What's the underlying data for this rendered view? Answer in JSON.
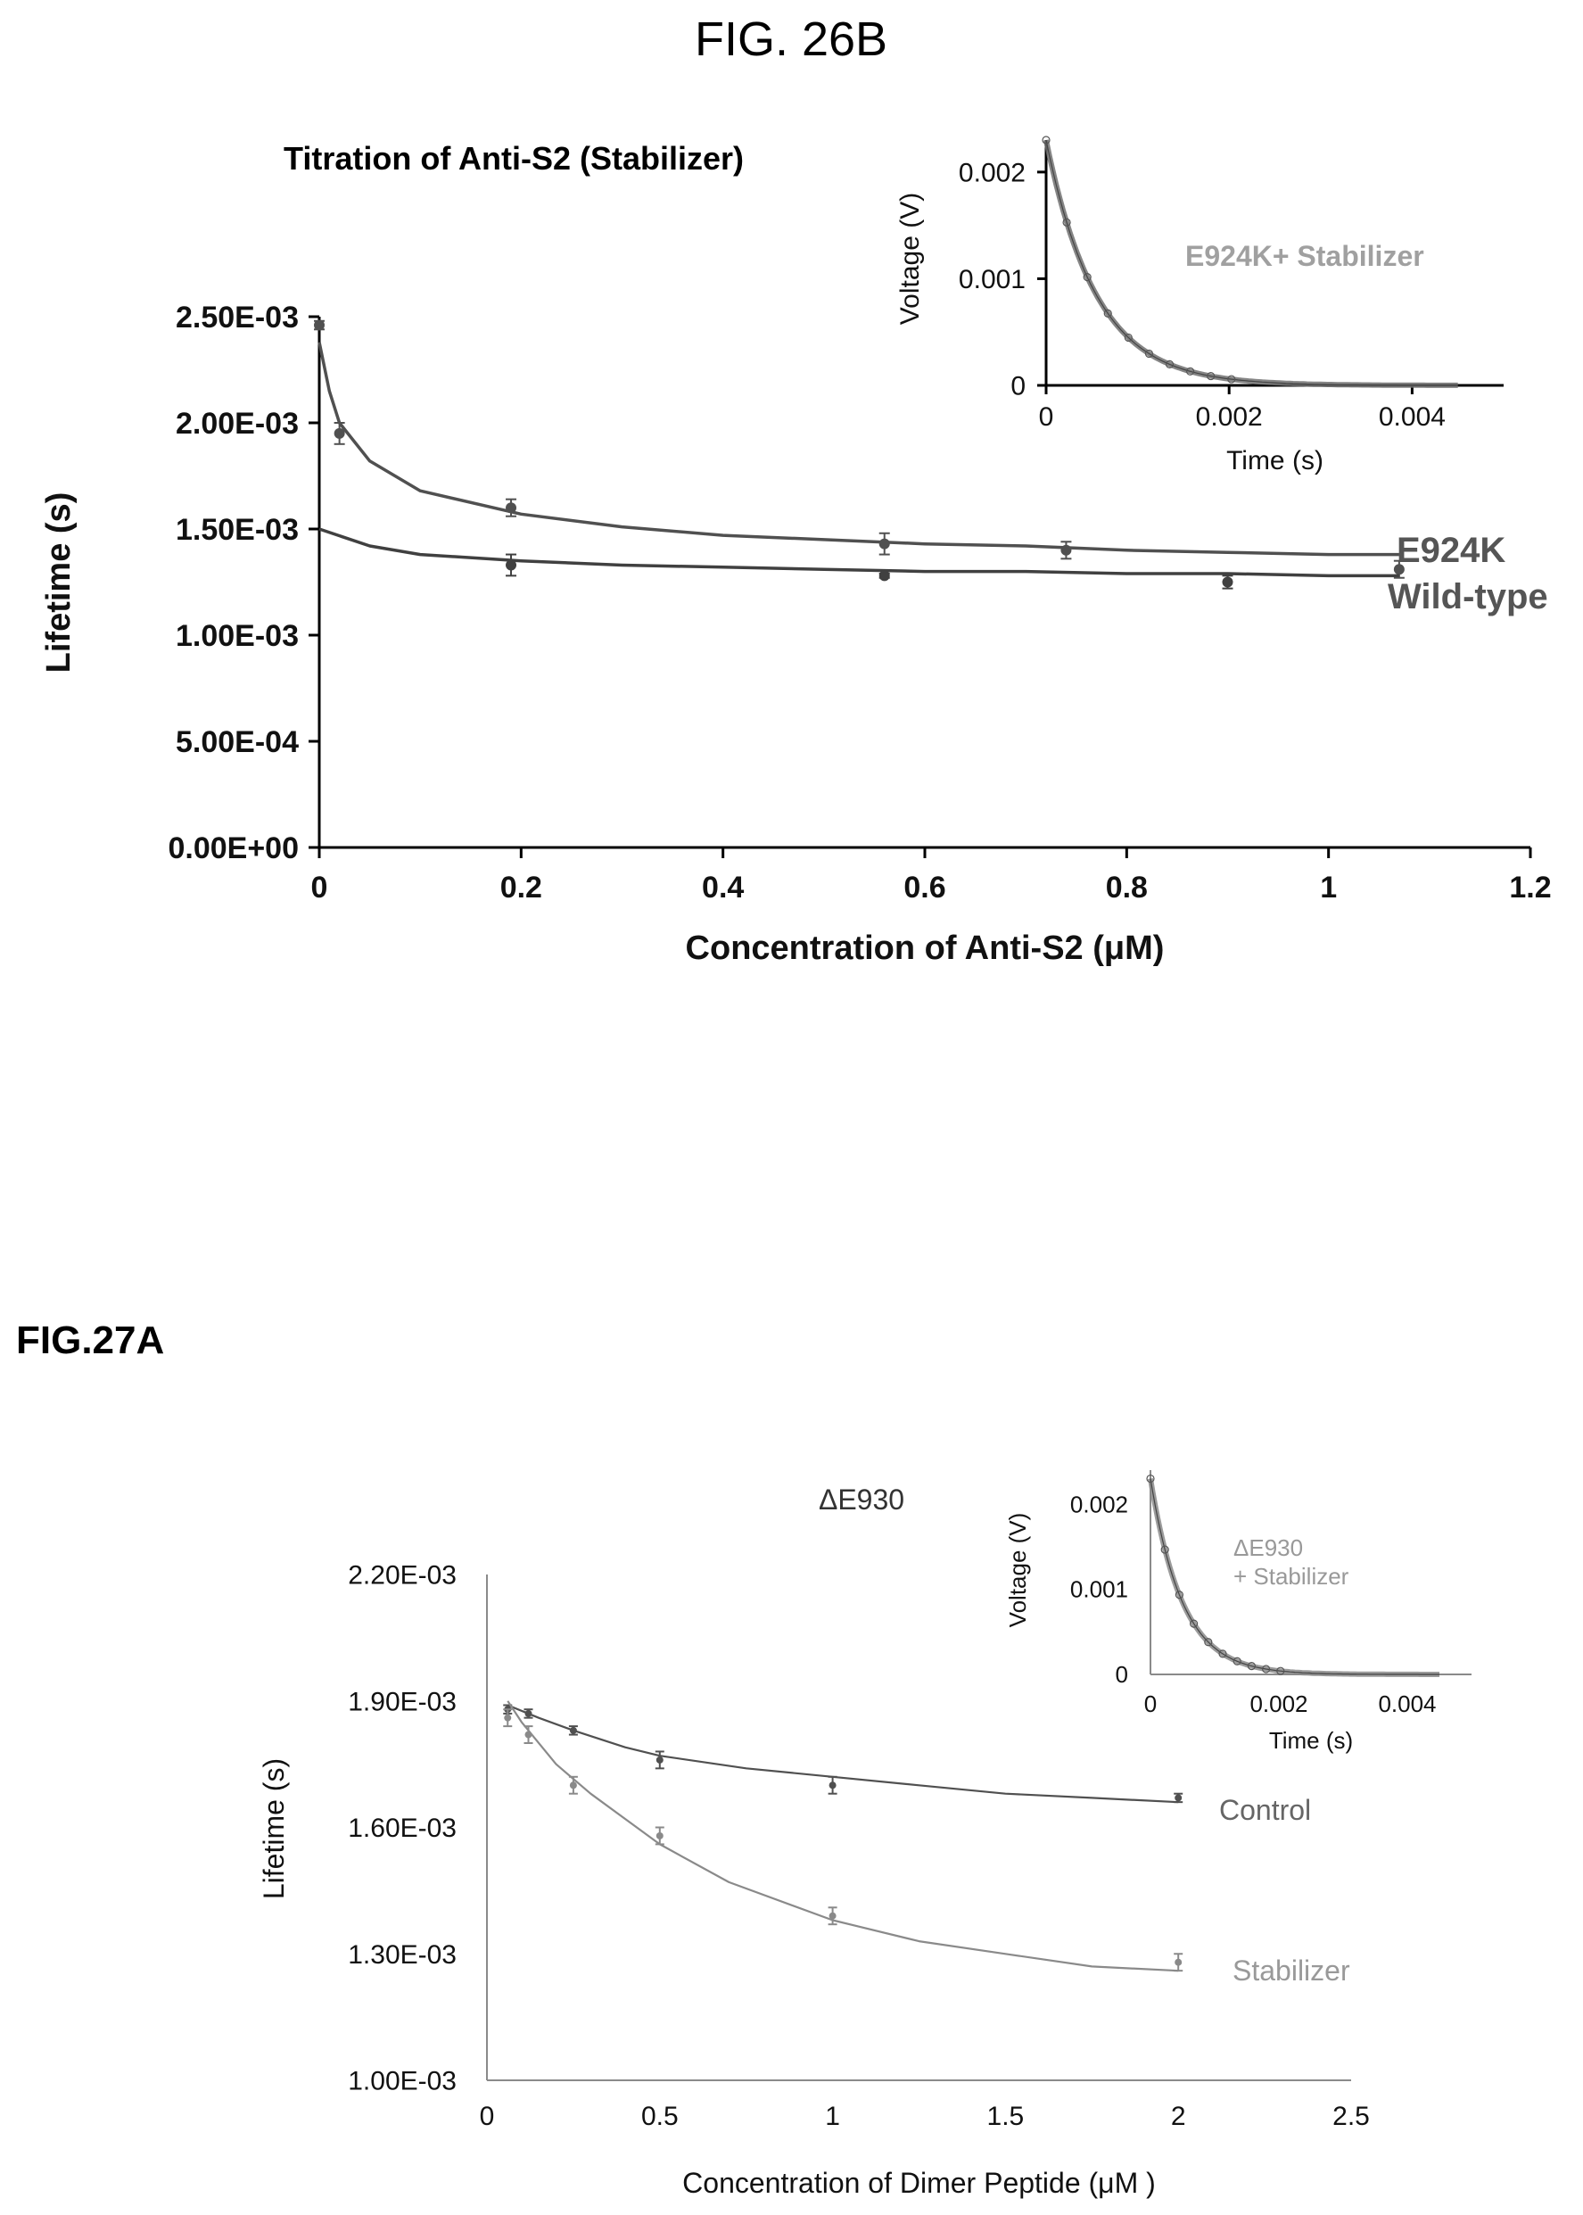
{
  "figures": {
    "fig26b_label": "FIG. 26B",
    "fig27a_label": "FIG.27A"
  },
  "chart_data": [
    {
      "id": "fig26b-main",
      "type": "line",
      "title": "Titration of Anti-S2 (Stabilizer)",
      "xlabel": "Concentration of Anti-S2 (μM)",
      "ylabel": "Lifetime (s)",
      "xlim": [
        0,
        1.2
      ],
      "ylim": [
        0,
        0.0025
      ],
      "xticks": [
        0,
        0.2,
        0.4,
        0.6,
        0.8,
        1,
        1.2
      ],
      "xtick_labels": [
        "0",
        "0.2",
        "0.4",
        "0.6",
        "0.8",
        "1",
        "1.2"
      ],
      "yticks": [
        0,
        0.0005,
        0.001,
        0.0015,
        0.002,
        0.0025
      ],
      "ytick_labels": [
        "0.00E+00",
        "5.00E-04",
        "1.00E-03",
        "1.50E-03",
        "2.00E-03",
        "2.50E-03"
      ],
      "grid": false,
      "series": [
        {
          "name": "E924K",
          "color": "#505050",
          "points": [
            {
              "x": 0,
              "y": 0.00246,
              "err": 2e-05
            },
            {
              "x": 0.02,
              "y": 0.00195,
              "err": 5e-05
            },
            {
              "x": 0.19,
              "y": 0.0016,
              "err": 4e-05
            },
            {
              "x": 0.56,
              "y": 0.00143,
              "err": 5e-05
            },
            {
              "x": 0.74,
              "y": 0.0014,
              "err": 4e-05
            },
            {
              "x": 1.07,
              "y": 0.00131,
              "err": 4e-05
            }
          ],
          "fit": [
            [
              0,
              0.00238
            ],
            [
              0.01,
              0.00215
            ],
            [
              0.02,
              0.002
            ],
            [
              0.05,
              0.00182
            ],
            [
              0.1,
              0.00168
            ],
            [
              0.2,
              0.00157
            ],
            [
              0.3,
              0.00151
            ],
            [
              0.4,
              0.00147
            ],
            [
              0.5,
              0.00145
            ],
            [
              0.6,
              0.00143
            ],
            [
              0.7,
              0.00142
            ],
            [
              0.8,
              0.0014
            ],
            [
              0.9,
              0.00139
            ],
            [
              1.0,
              0.00138
            ],
            [
              1.07,
              0.00138
            ]
          ]
        },
        {
          "name": "Wild-type",
          "color": "#404040",
          "points": [
            {
              "x": 0.19,
              "y": 0.00133,
              "err": 5e-05
            },
            {
              "x": 0.56,
              "y": 0.00128,
              "err": 1e-05
            },
            {
              "x": 0.9,
              "y": 0.00125,
              "err": 3e-05
            }
          ],
          "fit": [
            [
              0,
              0.0015
            ],
            [
              0.05,
              0.00142
            ],
            [
              0.1,
              0.00138
            ],
            [
              0.2,
              0.00135
            ],
            [
              0.3,
              0.00133
            ],
            [
              0.4,
              0.00132
            ],
            [
              0.5,
              0.00131
            ],
            [
              0.6,
              0.0013
            ],
            [
              0.7,
              0.0013
            ],
            [
              0.8,
              0.00129
            ],
            [
              0.9,
              0.00129
            ],
            [
              1.0,
              0.00128
            ],
            [
              1.07,
              0.00128
            ]
          ]
        }
      ]
    },
    {
      "id": "fig26b-inset",
      "type": "line",
      "title": "",
      "xlabel": "Time (s)",
      "ylabel": "Voltage (V)",
      "annotation": "E924K+ Stabilizer",
      "xlim": [
        0,
        0.005
      ],
      "ylim": [
        0,
        0.0023
      ],
      "xticks": [
        0,
        0.002,
        0.004
      ],
      "xtick_labels": [
        "0",
        "0.002",
        "0.004"
      ],
      "yticks": [
        0,
        0.001,
        0.002
      ],
      "ytick_labels": [
        "0",
        "0.001",
        "0.002"
      ],
      "grid": false,
      "series": [
        {
          "color": "#707070",
          "decay": {
            "amplitude": 0.0023,
            "tau": 0.00055,
            "t_end": 0.0045
          }
        }
      ]
    },
    {
      "id": "fig27a-main",
      "type": "line",
      "title": "ΔE930",
      "xlabel": "Concentration of Dimer Peptide (μM )",
      "ylabel": "Lifetime (s)",
      "xlim": [
        0,
        2.5
      ],
      "ylim": [
        0.001,
        0.0022
      ],
      "xticks": [
        0,
        0.5,
        1,
        1.5,
        2,
        2.5
      ],
      "xtick_labels": [
        "0",
        "0.5",
        "1",
        "1.5",
        "2",
        "2.5"
      ],
      "yticks": [
        0.001,
        0.0013,
        0.0016,
        0.0019,
        0.0022
      ],
      "ytick_labels": [
        "1.00E-03",
        "1.30E-03",
        "1.60E-03",
        "1.90E-03",
        "2.20E-03"
      ],
      "grid": false,
      "series": [
        {
          "name": "Control",
          "color": "#505050",
          "points": [
            {
              "x": 0.06,
              "y": 0.00188,
              "err": 1e-05
            },
            {
              "x": 0.12,
              "y": 0.00187,
              "err": 1e-05
            },
            {
              "x": 0.25,
              "y": 0.00183,
              "err": 1e-05
            },
            {
              "x": 0.5,
              "y": 0.00176,
              "err": 2e-05
            },
            {
              "x": 1.0,
              "y": 0.0017,
              "err": 2e-05
            },
            {
              "x": 2.0,
              "y": 0.00167,
              "err": 1e-05
            }
          ],
          "fit": [
            [
              0.06,
              0.00189
            ],
            [
              0.15,
              0.00186
            ],
            [
              0.25,
              0.00183
            ],
            [
              0.4,
              0.00179
            ],
            [
              0.5,
              0.00177
            ],
            [
              0.75,
              0.00174
            ],
            [
              1.0,
              0.00172
            ],
            [
              1.25,
              0.0017
            ],
            [
              1.5,
              0.00168
            ],
            [
              1.75,
              0.00167
            ],
            [
              2.0,
              0.00166
            ]
          ]
        },
        {
          "name": "Stabilizer",
          "color": "#8a8a8a",
          "points": [
            {
              "x": 0.06,
              "y": 0.00186,
              "err": 2e-05
            },
            {
              "x": 0.12,
              "y": 0.00182,
              "err": 2e-05
            },
            {
              "x": 0.25,
              "y": 0.0017,
              "err": 2e-05
            },
            {
              "x": 0.5,
              "y": 0.00158,
              "err": 2e-05
            },
            {
              "x": 1.0,
              "y": 0.00139,
              "err": 2e-05
            },
            {
              "x": 2.0,
              "y": 0.00128,
              "err": 2e-05
            }
          ],
          "fit": [
            [
              0.06,
              0.0019
            ],
            [
              0.1,
              0.00185
            ],
            [
              0.2,
              0.00175
            ],
            [
              0.3,
              0.00168
            ],
            [
              0.5,
              0.00156
            ],
            [
              0.7,
              0.00147
            ],
            [
              1.0,
              0.00138
            ],
            [
              1.25,
              0.00133
            ],
            [
              1.5,
              0.0013
            ],
            [
              1.75,
              0.00127
            ],
            [
              2.0,
              0.00126
            ]
          ]
        }
      ]
    },
    {
      "id": "fig27a-inset",
      "type": "line",
      "title": "",
      "xlabel": "Time (s)",
      "ylabel": "Voltage (V)",
      "annotation": [
        "ΔE930",
        "+ Stabilizer"
      ],
      "xlim": [
        0,
        0.005
      ],
      "ylim": [
        0,
        0.0024
      ],
      "xticks": [
        0,
        0.002,
        0.004
      ],
      "xtick_labels": [
        "0",
        "0.002",
        "0.004"
      ],
      "yticks": [
        0,
        0.001,
        0.002
      ],
      "ytick_labels": [
        "0",
        "0.001",
        "0.002"
      ],
      "grid": false,
      "series": [
        {
          "color": "#8a8a8a",
          "decay": {
            "amplitude": 0.0023,
            "tau": 0.0005,
            "t_end": 0.0045
          }
        }
      ]
    }
  ]
}
